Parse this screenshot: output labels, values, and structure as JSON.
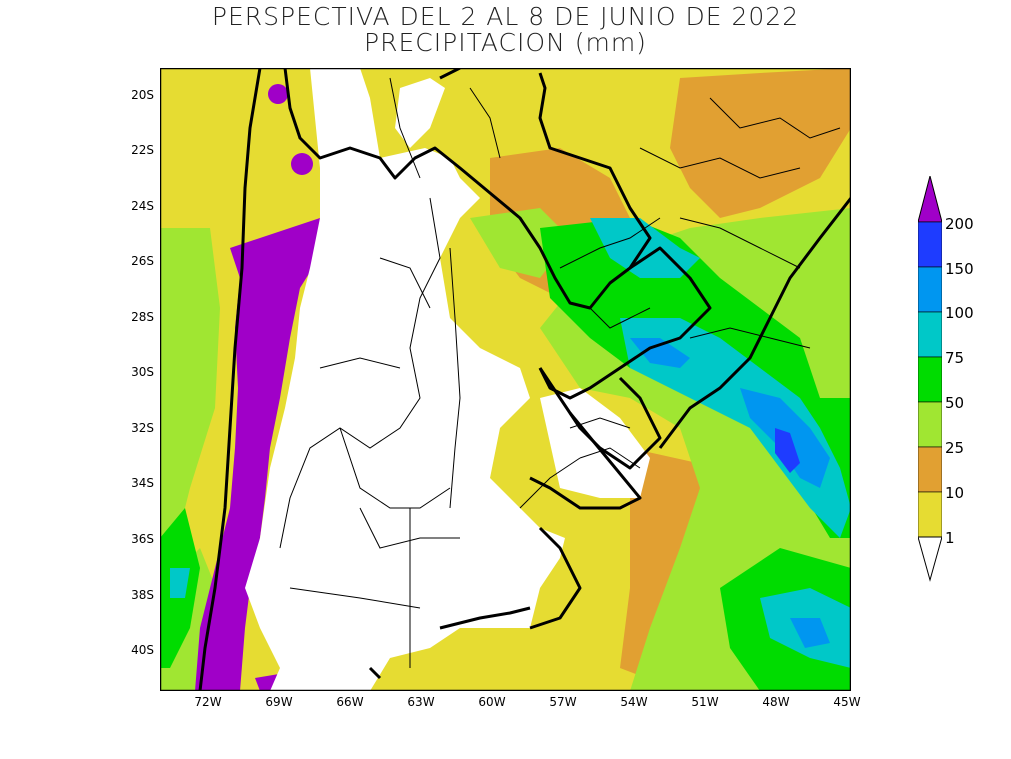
{
  "title": {
    "line1": "PERSPECTIVA DEL 2 AL 8 DE JUNIO DE 2022",
    "line2": "PRECIPITACION (mm)"
  },
  "axes": {
    "lat_labels": [
      "20S",
      "22S",
      "24S",
      "26S",
      "28S",
      "30S",
      "32S",
      "34S",
      "36S",
      "38S",
      "40S"
    ],
    "lon_labels": [
      "72W",
      "69W",
      "66W",
      "63W",
      "60W",
      "57W",
      "54W",
      "51W",
      "48W",
      "45W"
    ]
  },
  "legend": {
    "levels": [
      "1",
      "10",
      "25",
      "50",
      "75",
      "100",
      "150",
      "200"
    ],
    "colors": {
      "white": "#ffffff",
      "l1": "#e6dc32",
      "l10": "#e1a032",
      "l25": "#a0e632",
      "l50": "#00dc00",
      "l75": "#00c8c8",
      "l100": "#0096f0",
      "l150": "#1e3cff",
      "l200": "#a000c8"
    }
  }
}
